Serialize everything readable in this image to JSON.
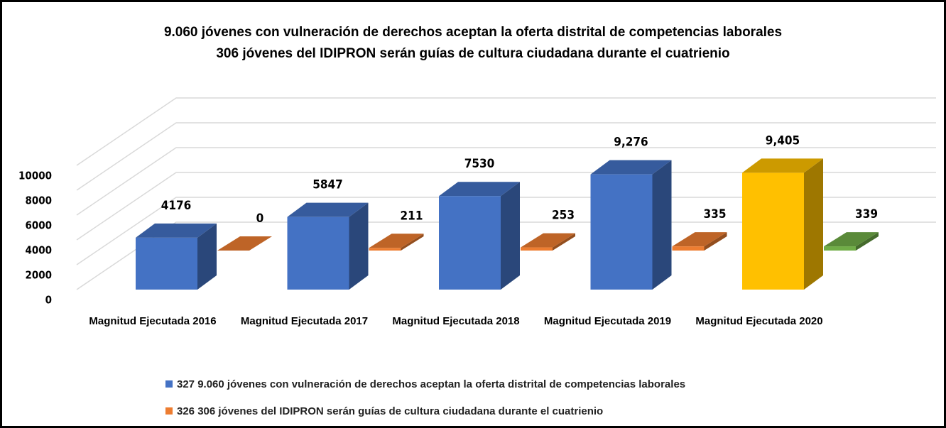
{
  "chart_data": {
    "type": "bar3d",
    "title": [
      "9.060 jóvenes con vulneración de derechos aceptan la oferta distrital de competencias laborales",
      "306 jóvenes del IDIPRON serán guías de cultura ciudadana durante el cuatrienio"
    ],
    "categories": [
      "Magnitud Ejecutada 2016",
      "Magnitud Ejecutada 2017",
      "Magnitud Ejecutada 2018",
      "Magnitud Ejecutada 2019",
      "Magnitud Ejecutada 2020"
    ],
    "series": [
      {
        "name": "327 9.060 jóvenes con vulneración de derechos aceptan la oferta distrital de competencias laborales",
        "color": "#4472c4",
        "colors": [
          "#4472c4",
          "#4472c4",
          "#4472c4",
          "#4472c4",
          "#ffc000"
        ],
        "values": [
          4176,
          5847,
          7530,
          9276,
          9405
        ],
        "value_labels": [
          "4176",
          "5847",
          "7530",
          "9,276",
          "9,405"
        ]
      },
      {
        "name": "326 306 jóvenes del IDIPRON serán guías de cultura ciudadana durante el cuatrienio",
        "color": "#ed7d31",
        "colors": [
          "#ed7d31",
          "#ed7d31",
          "#ed7d31",
          "#ed7d31",
          "#70ad47"
        ],
        "values": [
          0,
          211,
          253,
          335,
          339
        ]
      }
    ],
    "ylim": [
      0,
      10000
    ],
    "yticks": [
      0,
      2000,
      4000,
      6000,
      8000,
      10000
    ],
    "grid": true,
    "legend": "bottom"
  }
}
